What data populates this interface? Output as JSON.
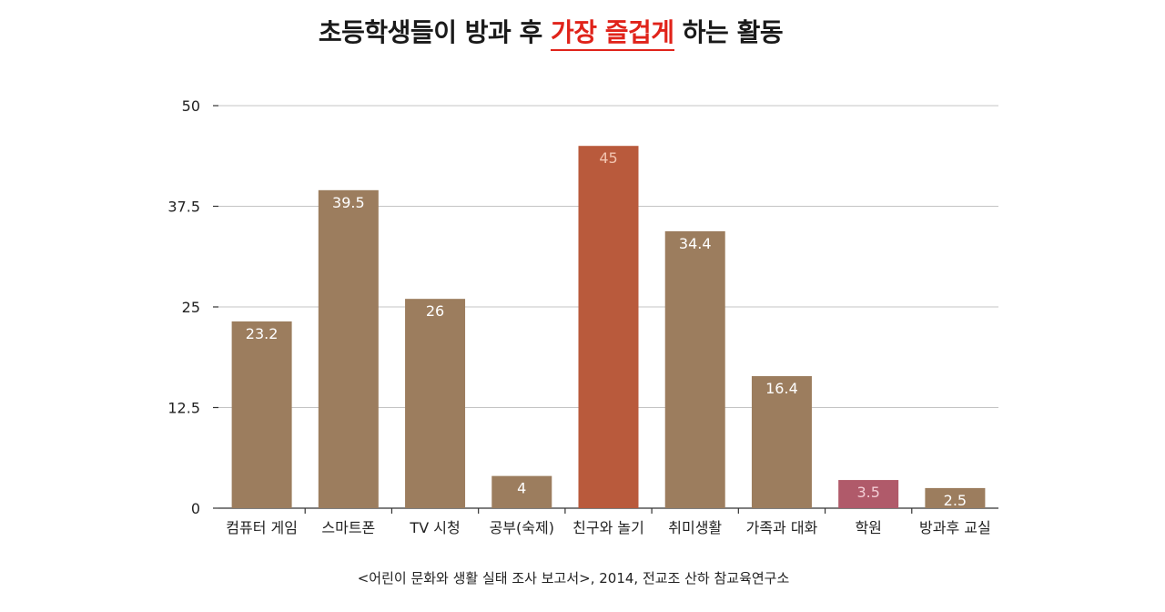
{
  "title": {
    "prefix": "초등학생들이 방과 후 ",
    "highlight": "가장 즐겁게",
    "suffix": " 하는 활동"
  },
  "source": "<어린이 문화와 생활 실태 조사 보고서>, 2014, 전교조 산하 참교육연구소",
  "chart_data": {
    "type": "bar",
    "title": "초등학생들이 방과 후 가장 즐겁게 하는 활동",
    "xlabel": "",
    "ylabel": "",
    "ylim": [
      0,
      50
    ],
    "yticks": [
      "0",
      "12.5",
      "25",
      "37.5",
      "50"
    ],
    "grid": true,
    "categories": [
      "컴퓨터 게임",
      "스마트폰",
      "TV 시청",
      "공부(숙제)",
      "친구와 놀기",
      "취미생활",
      "가족과 대화",
      "학원",
      "방과후 교실"
    ],
    "values": [
      23.2,
      39.5,
      26,
      4,
      45,
      34.4,
      16.4,
      3.5,
      2.5
    ],
    "value_labels": [
      "23.2",
      "39.5",
      "26",
      "4",
      "45",
      "34.4",
      "16.4",
      "3.5",
      "2.5"
    ],
    "colors": [
      "#9c7d5e",
      "#9c7d5e",
      "#9c7d5e",
      "#9c7d5e",
      "#b95a3c",
      "#9c7d5e",
      "#9c7d5e",
      "#b05a6a",
      "#9c7d5e"
    ],
    "label_colors": [
      "#ffffff",
      "#ffffff",
      "#ffffff",
      "#ffffff",
      "#f2c4b0",
      "#ffffff",
      "#ffffff",
      "#f3cdd5",
      "#ffffff"
    ]
  }
}
